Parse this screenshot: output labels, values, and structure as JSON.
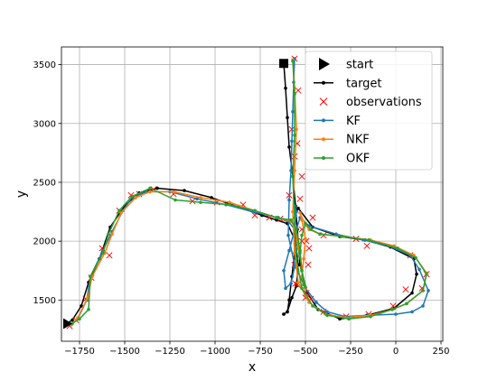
{
  "chart_data": {
    "type": "line",
    "xlabel": "x",
    "ylabel": "y",
    "xlim": [
      -1850,
      260
    ],
    "ylim": [
      1150,
      3650
    ],
    "xticks": [
      -1750,
      -1500,
      -1250,
      -1000,
      -750,
      -500,
      -250,
      0,
      250
    ],
    "yticks": [
      1500,
      2000,
      2500,
      3000,
      3500
    ],
    "grid": true,
    "legend_position": "top-right",
    "colors": {
      "target": "#000000",
      "observations": "#ff0000",
      "KF": "#1f77b4",
      "NKF": "#ff7f0e",
      "OKF": "#2ca02c"
    },
    "markers": {
      "start": {
        "label": "start",
        "x": -1820,
        "y": 1300
      },
      "end": {
        "x": -620,
        "y": 3510
      }
    },
    "series": [
      {
        "name": "target",
        "x": [
          -1820,
          -1790,
          -1740,
          -1700,
          -1640,
          -1580,
          -1500,
          -1420,
          -1320,
          -1170,
          -1020,
          -870,
          -740,
          -660,
          -600,
          -555,
          -540,
          -550,
          -575,
          -600,
          -620,
          -620,
          -600,
          -590,
          -575,
          -560,
          -560,
          -550,
          -540,
          -460,
          -310,
          -170,
          -30,
          100,
          115,
          90,
          -10,
          -160,
          -310,
          -430,
          -490,
          -530,
          -545,
          -555,
          -570,
          -590,
          -600,
          -610,
          -620
        ],
        "y": [
          1300,
          1330,
          1450,
          1650,
          1850,
          2120,
          2300,
          2410,
          2450,
          2430,
          2370,
          2290,
          2220,
          2180,
          2150,
          2000,
          1800,
          1620,
          1520,
          1400,
          1380,
          1380,
          1400,
          1500,
          1700,
          1900,
          2100,
          2260,
          2280,
          2120,
          2040,
          2010,
          1950,
          1850,
          1720,
          1560,
          1430,
          1370,
          1340,
          1420,
          1560,
          1800,
          2100,
          2300,
          2550,
          2800,
          3050,
          3300,
          3510
        ]
      },
      {
        "name": "observations",
        "x": [
          -1805,
          -1770,
          -1715,
          -1685,
          -1625,
          -1585,
          -1530,
          -1465,
          -1420,
          -1340,
          -1230,
          -1125,
          -990,
          -845,
          -780,
          -700,
          -640,
          -530,
          -495,
          -470,
          -545,
          -485,
          -460,
          -520,
          -520,
          -480,
          -495,
          -555,
          -550,
          -520,
          -560,
          -545,
          -400,
          -220,
          -160,
          80,
          170,
          145,
          55,
          -15,
          -150,
          -275,
          -400,
          -500,
          -560,
          -590,
          -575,
          -540,
          -560
        ],
        "y": [
          1280,
          1330,
          1510,
          1690,
          1940,
          1880,
          2260,
          2390,
          2400,
          2440,
          2400,
          2340,
          2330,
          2310,
          2220,
          2200,
          2190,
          2360,
          2000,
          1510,
          1630,
          1800,
          2200,
          2100,
          2000,
          1940,
          1560,
          1640,
          2000,
          2550,
          2720,
          2830,
          2050,
          2020,
          1960,
          1880,
          1720,
          1600,
          1590,
          1450,
          1380,
          1360,
          1400,
          1520,
          1800,
          2390,
          2950,
          3280,
          3550
        ]
      },
      {
        "name": "KF",
        "x": [
          -1805,
          -1760,
          -1710,
          -1690,
          -1620,
          -1570,
          -1510,
          -1460,
          -1380,
          -1250,
          -1100,
          -940,
          -790,
          -650,
          -590,
          -560,
          -545,
          -560,
          -580,
          -610,
          -620,
          -590,
          -560,
          -550,
          -560,
          -555,
          -560,
          -550,
          -530,
          -480,
          -330,
          -180,
          -40,
          80,
          130,
          180,
          150,
          90,
          0,
          -150,
          -280,
          -380,
          -440,
          -500,
          -560,
          -595,
          -590,
          -580,
          -575,
          -570,
          -565,
          -560
        ],
        "y": [
          1290,
          1340,
          1500,
          1700,
          1920,
          2080,
          2260,
          2370,
          2420,
          2420,
          2360,
          2310,
          2250,
          2200,
          2160,
          2100,
          1950,
          1780,
          1640,
          1600,
          1750,
          1920,
          2100,
          2250,
          2300,
          2220,
          2150,
          2100,
          2200,
          2130,
          2060,
          2010,
          1960,
          1880,
          1760,
          1580,
          1450,
          1400,
          1380,
          1370,
          1360,
          1400,
          1480,
          1600,
          1800,
          2050,
          2350,
          2600,
          2850,
          3100,
          3350,
          3550
        ]
      },
      {
        "name": "NKF",
        "x": [
          -1795,
          -1760,
          -1705,
          -1680,
          -1610,
          -1570,
          -1520,
          -1440,
          -1360,
          -1230,
          -1080,
          -920,
          -780,
          -660,
          -580,
          -560,
          -540,
          -520,
          -510,
          -500,
          -520,
          -510,
          -500,
          -520,
          -530,
          -500,
          -480,
          -420,
          -290,
          -140,
          -10,
          100,
          170,
          150,
          60,
          -20,
          -140,
          -280,
          -390,
          -480,
          -540,
          -560,
          -570,
          -560,
          -550,
          -560,
          -570
        ],
        "y": [
          1290,
          1350,
          1520,
          1700,
          1900,
          2060,
          2240,
          2370,
          2420,
          2420,
          2370,
          2330,
          2260,
          2200,
          2170,
          2120,
          1950,
          1780,
          1650,
          1600,
          1700,
          1850,
          2020,
          2180,
          2240,
          2140,
          2100,
          2060,
          2040,
          2010,
          1960,
          1880,
          1730,
          1580,
          1470,
          1420,
          1370,
          1350,
          1380,
          1480,
          1650,
          1900,
          2250,
          2600,
          2950,
          3300,
          3540
        ]
      },
      {
        "name": "OKF",
        "x": [
          -1790,
          -1750,
          -1700,
          -1690,
          -1620,
          -1590,
          -1530,
          -1460,
          -1360,
          -1220,
          -1080,
          -920,
          -780,
          -660,
          -580,
          -550,
          -530,
          -520,
          -510,
          -500,
          -520,
          -530,
          -520,
          -500,
          -470,
          -420,
          -300,
          -150,
          10,
          110,
          170,
          150,
          60,
          -20,
          -140,
          -260,
          -380,
          -460,
          -520,
          -550,
          -560,
          -570,
          -560,
          -560,
          -570
        ],
        "y": [
          1300,
          1340,
          1420,
          1700,
          1900,
          2060,
          2260,
          2380,
          2450,
          2350,
          2330,
          2310,
          2260,
          2200,
          2180,
          2100,
          1920,
          1750,
          1630,
          1610,
          1750,
          1900,
          2050,
          2150,
          2100,
          2060,
          2040,
          2010,
          1940,
          1860,
          1720,
          1580,
          1470,
          1420,
          1360,
          1340,
          1370,
          1450,
          1600,
          1850,
          2200,
          2550,
          2900,
          3250,
          3530
        ]
      }
    ],
    "legend": [
      "start",
      "target",
      "observations",
      "KF",
      "NKF",
      "OKF"
    ]
  }
}
